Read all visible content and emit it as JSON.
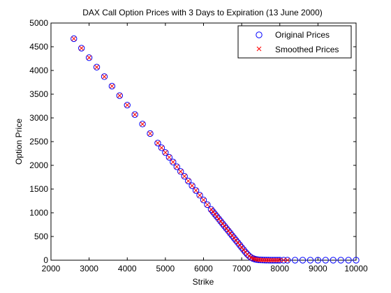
{
  "chart_data": {
    "type": "scatter",
    "title": "DAX Call Option Prices with 3 Days to Expiration (13 June 2000)",
    "xlabel": "Strike",
    "ylabel": "Option Price",
    "xlim": [
      2000,
      10000
    ],
    "ylim": [
      0,
      5000
    ],
    "x_ticks": [
      2000,
      3000,
      4000,
      5000,
      6000,
      7000,
      8000,
      9000,
      10000
    ],
    "y_ticks": [
      0,
      500,
      1000,
      1500,
      2000,
      2500,
      3000,
      3500,
      4000,
      4500,
      5000
    ],
    "x_tick_labels": [
      "2000",
      "3000",
      "4000",
      "5000",
      "6000",
      "7000",
      "8000",
      "9000",
      "10000"
    ],
    "y_tick_labels": [
      "0",
      "500",
      "1000",
      "1500",
      "2000",
      "2500",
      "3000",
      "3500",
      "4000",
      "4500",
      "5000"
    ],
    "grid": false,
    "legend_position": "top-right",
    "series": [
      {
        "name": "Original Prices",
        "marker": "circle",
        "color": "#0000ff",
        "x": [
          2600,
          2800,
          3000,
          3200,
          3400,
          3600,
          3800,
          4000,
          4200,
          4400,
          4600,
          4800,
          4900,
          5000,
          5100,
          5200,
          5300,
          5400,
          5500,
          5600,
          5700,
          5800,
          5900,
          6000,
          6100,
          6200,
          6250,
          6300,
          6350,
          6400,
          6450,
          6500,
          6550,
          6600,
          6650,
          6700,
          6750,
          6800,
          6850,
          6900,
          6950,
          7000,
          7050,
          7100,
          7150,
          7200,
          7250,
          7300,
          7350,
          7400,
          7450,
          7500,
          7550,
          7600,
          7650,
          7700,
          7750,
          7800,
          7850,
          7900,
          7950,
          8000,
          8100,
          8200,
          8400,
          8600,
          8800,
          9000,
          9200,
          9400,
          9600,
          9800,
          10000
        ],
        "y": [
          4670,
          4470,
          4270,
          4070,
          3870,
          3670,
          3470,
          3270,
          3070,
          2870,
          2670,
          2470,
          2370,
          2270,
          2170,
          2070,
          1970,
          1870,
          1770,
          1670,
          1570,
          1470,
          1370,
          1270,
          1170,
          1070,
          1020,
          970,
          920,
          870,
          820,
          770,
          720,
          670,
          620,
          570,
          520,
          470,
          420,
          370,
          320,
          270,
          220,
          170,
          125,
          85,
          55,
          35,
          22,
          14,
          9,
          6,
          4,
          3,
          2,
          2,
          1,
          1,
          1,
          1,
          1,
          1,
          1,
          1,
          1,
          1,
          1,
          1,
          1,
          1,
          1,
          1,
          1
        ]
      },
      {
        "name": "Smoothed Prices",
        "marker": "x",
        "color": "#ff0000",
        "x": [
          2600,
          2800,
          3000,
          3200,
          3400,
          3600,
          3800,
          4000,
          4200,
          4400,
          4600,
          4800,
          4900,
          5000,
          5100,
          5200,
          5300,
          5400,
          5500,
          5600,
          5700,
          5800,
          5900,
          6000,
          6100,
          6200,
          6250,
          6300,
          6350,
          6400,
          6450,
          6500,
          6550,
          6600,
          6650,
          6700,
          6750,
          6800,
          6850,
          6900,
          6950,
          7000,
          7050,
          7100,
          7150,
          7200,
          7250,
          7300,
          7350,
          7400,
          7450,
          7500,
          7550,
          7600,
          7650,
          7700,
          7750,
          7800,
          7850,
          7900,
          7950,
          8000,
          8100,
          8200
        ],
        "y": [
          4670,
          4470,
          4270,
          4070,
          3870,
          3670,
          3470,
          3270,
          3070,
          2870,
          2670,
          2470,
          2370,
          2270,
          2170,
          2070,
          1970,
          1870,
          1770,
          1670,
          1570,
          1470,
          1370,
          1270,
          1170,
          1070,
          1020,
          970,
          920,
          870,
          820,
          770,
          720,
          670,
          620,
          570,
          520,
          470,
          420,
          370,
          320,
          270,
          220,
          170,
          125,
          85,
          55,
          35,
          22,
          14,
          9,
          6,
          4,
          3,
          2,
          2,
          1,
          1,
          1,
          1,
          1,
          1,
          1,
          1
        ]
      }
    ]
  }
}
